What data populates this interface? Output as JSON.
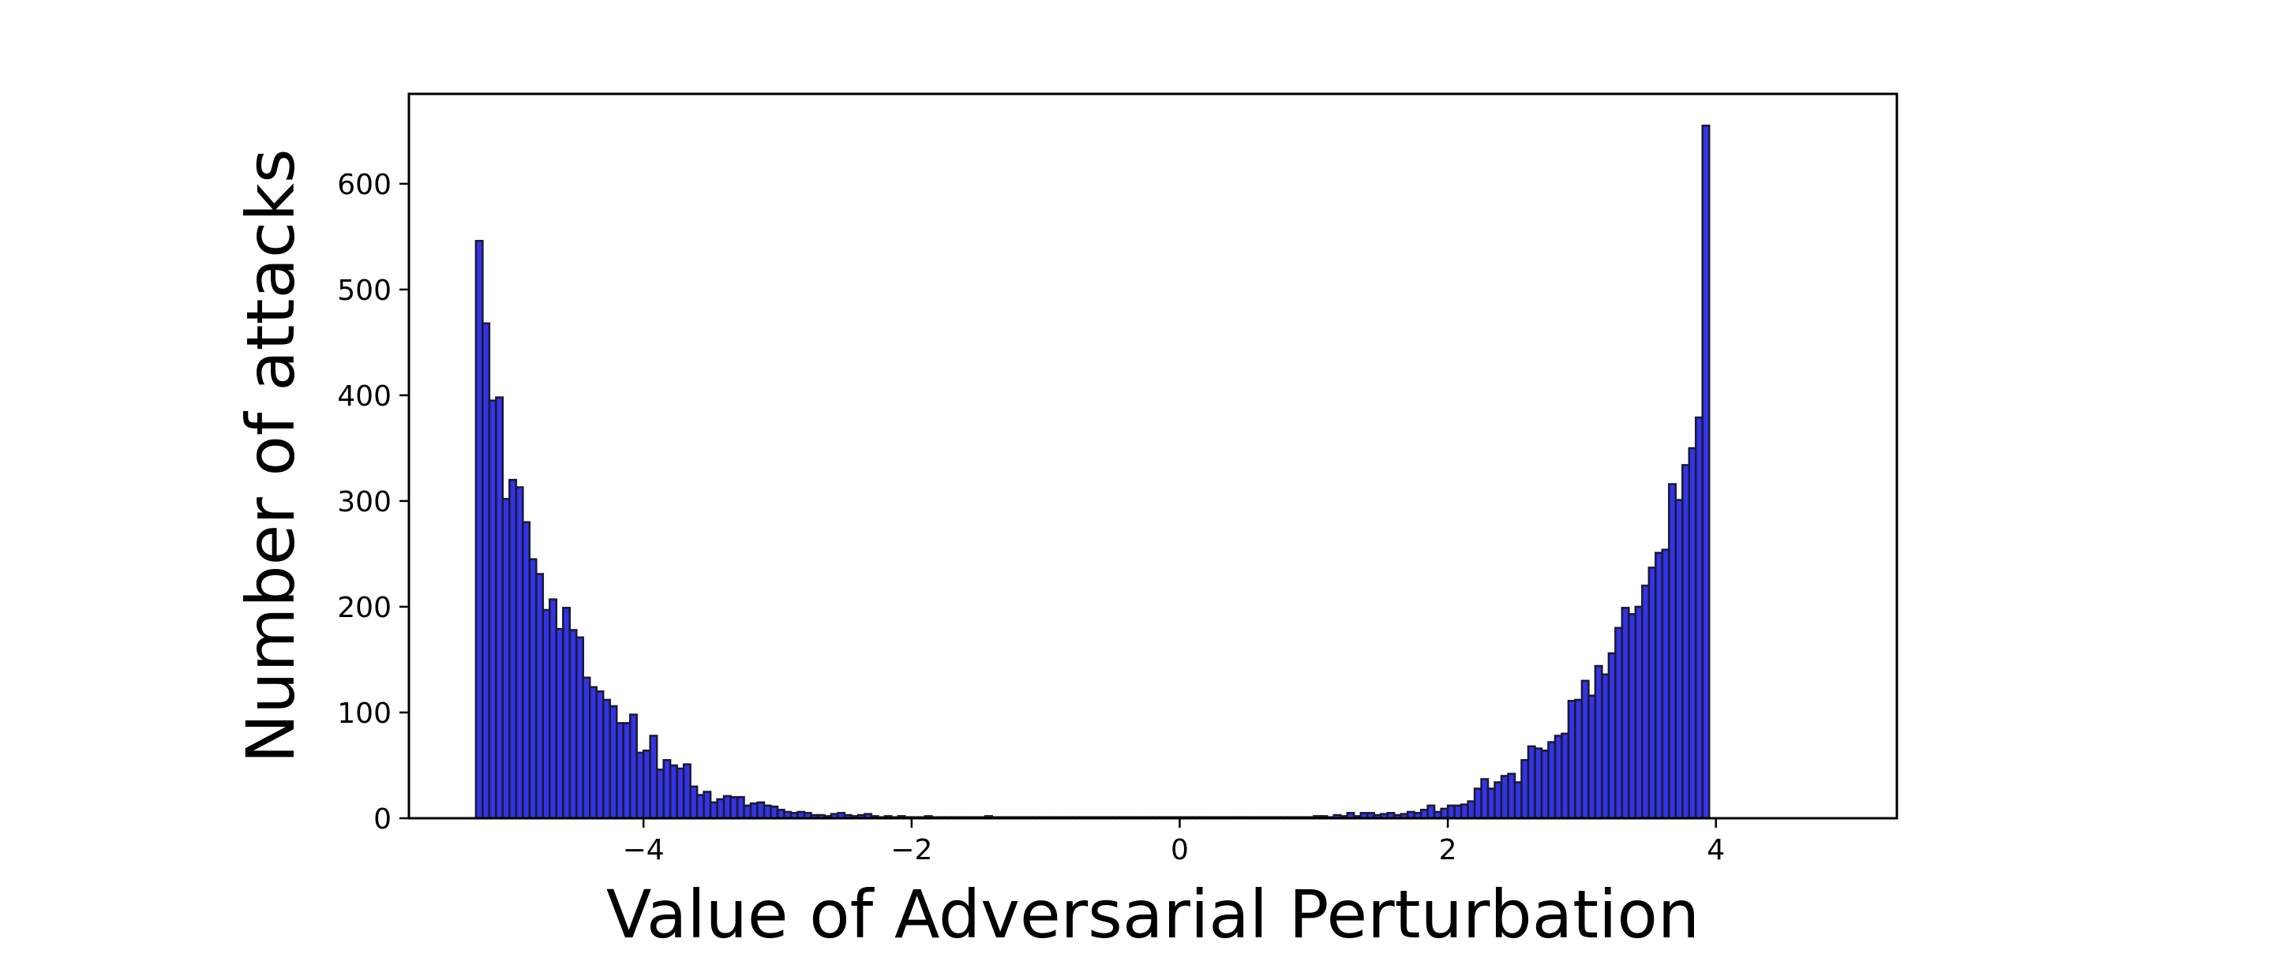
{
  "chart_data": {
    "type": "bar",
    "subtype": "histogram",
    "title": "",
    "xlabel": "Value of Adversarial Perturbation",
    "ylabel": "Number of attacks",
    "xlim": [
      -5.75,
      5.35
    ],
    "ylim": [
      0,
      685
    ],
    "xticks": [
      -4,
      -2,
      0,
      2,
      4
    ],
    "xtick_labels": [
      "−4",
      "−2",
      "0",
      "2",
      "4"
    ],
    "yticks": [
      0,
      100,
      200,
      300,
      400,
      500,
      600
    ],
    "ytick_labels": [
      "0",
      "100",
      "200",
      "300",
      "400",
      "500",
      "600"
    ],
    "grid": false,
    "legend": "none",
    "bar_color": "#3333e8",
    "edge_color": "#1a1a2e",
    "bins": {
      "start": -5.25,
      "width": 0.05,
      "counts": [
        546,
        468,
        395,
        398,
        302,
        320,
        313,
        280,
        245,
        231,
        197,
        207,
        179,
        199,
        178,
        171,
        133,
        124,
        120,
        112,
        106,
        90,
        90,
        98,
        62,
        64,
        78,
        46,
        55,
        50,
        47,
        51,
        30,
        22,
        25,
        15,
        18,
        21,
        20,
        20,
        12,
        14,
        15,
        12,
        11,
        8,
        6,
        5,
        6,
        5,
        3,
        3,
        2,
        4,
        5,
        3,
        2,
        3,
        4,
        2,
        1,
        2,
        1,
        2,
        1,
        1,
        1,
        2,
        1,
        1,
        1,
        1,
        1,
        1,
        1,
        1,
        2,
        1,
        1,
        1,
        1,
        1,
        1,
        1,
        1,
        1,
        1,
        1,
        1,
        1,
        1,
        1,
        1,
        1,
        1,
        1,
        1,
        1,
        1,
        1,
        1,
        1,
        1,
        1,
        1,
        1,
        1,
        1,
        1,
        1,
        1,
        1,
        1,
        1,
        1,
        1,
        1,
        1,
        1,
        1,
        1,
        1,
        1,
        1,
        1,
        2,
        2,
        1,
        3,
        2,
        5,
        2,
        5,
        5,
        3,
        4,
        5,
        3,
        4,
        6,
        5,
        8,
        12,
        6,
        9,
        12,
        12,
        13,
        16,
        28,
        37,
        28,
        34,
        40,
        42,
        34,
        55,
        68,
        66,
        64,
        72,
        78,
        80,
        111,
        112,
        130,
        116,
        144,
        136,
        156,
        180,
        199,
        193,
        200,
        220,
        237,
        251,
        254,
        316,
        301,
        334,
        350,
        379,
        655
      ]
    }
  }
}
